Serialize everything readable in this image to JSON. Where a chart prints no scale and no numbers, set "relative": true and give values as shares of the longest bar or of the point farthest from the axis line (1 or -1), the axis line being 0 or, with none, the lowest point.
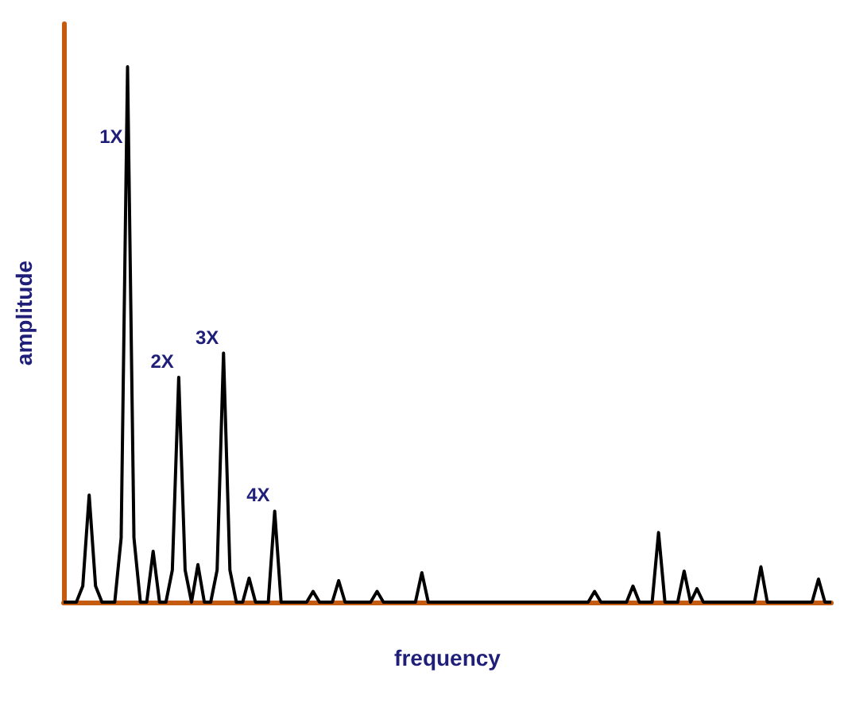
{
  "chart_data": {
    "type": "line",
    "relative": true,
    "xlabel": "frequency",
    "ylabel": "amplitude",
    "color": "#000000",
    "grid": false,
    "categories": [
      null,
      null,
      null,
      null,
      null,
      null,
      null,
      null,
      null,
      null,
      null,
      null,
      null,
      null,
      null,
      null,
      null,
      null,
      null,
      null,
      null,
      null,
      null,
      null,
      null,
      null,
      null,
      null,
      null,
      null,
      null,
      null,
      null,
      null,
      null,
      null,
      null,
      null,
      null,
      null,
      null,
      null,
      null,
      null,
      null,
      null,
      null,
      null,
      null,
      null,
      null,
      null,
      null,
      null,
      null,
      null,
      null,
      null,
      null,
      null,
      null,
      null,
      null,
      null,
      null,
      null,
      null,
      null,
      null,
      null,
      null,
      null,
      null,
      null,
      null,
      null,
      null,
      null,
      null,
      null,
      null,
      null,
      null,
      null,
      null,
      null,
      null,
      null,
      null,
      null,
      null,
      null,
      null,
      null,
      null,
      null,
      null,
      null,
      null,
      null,
      null,
      null,
      null,
      null,
      null,
      null,
      null,
      null,
      null,
      null,
      null,
      null,
      null,
      null,
      null,
      null,
      null,
      null,
      null,
      null,
      null
    ],
    "values": [
      0,
      0,
      0,
      0.03,
      0.2,
      0.03,
      0,
      0,
      0,
      0.12,
      1,
      0.12,
      0,
      0,
      0.095,
      0,
      0,
      0.06,
      0.42,
      0.06,
      0,
      0.07,
      0,
      0,
      0.06,
      0.465,
      0.06,
      0,
      0,
      0.045,
      0,
      0,
      0,
      0.17,
      0,
      0,
      0,
      0,
      0,
      0.02,
      0,
      0,
      0,
      0.04,
      0,
      0,
      0,
      0,
      0,
      0.02,
      0,
      0,
      0,
      0,
      0,
      0,
      0.055,
      0,
      0,
      0,
      0,
      0,
      0,
      0,
      0,
      0,
      0,
      0,
      0,
      0,
      0,
      0,
      0,
      0,
      0,
      0,
      0,
      0,
      0,
      0,
      0,
      0,
      0,
      0.02,
      0,
      0,
      0,
      0,
      0,
      0.03,
      0,
      0,
      0,
      0.13,
      0,
      0,
      0,
      0.058,
      0,
      0.025,
      0,
      0,
      0,
      0,
      0,
      0,
      0,
      0,
      0,
      0.066,
      0,
      0,
      0,
      0,
      0,
      0,
      0,
      0,
      0.043,
      0,
      0
    ],
    "annotations": [
      "1X",
      "2X",
      "3X",
      "4X"
    ]
  }
}
